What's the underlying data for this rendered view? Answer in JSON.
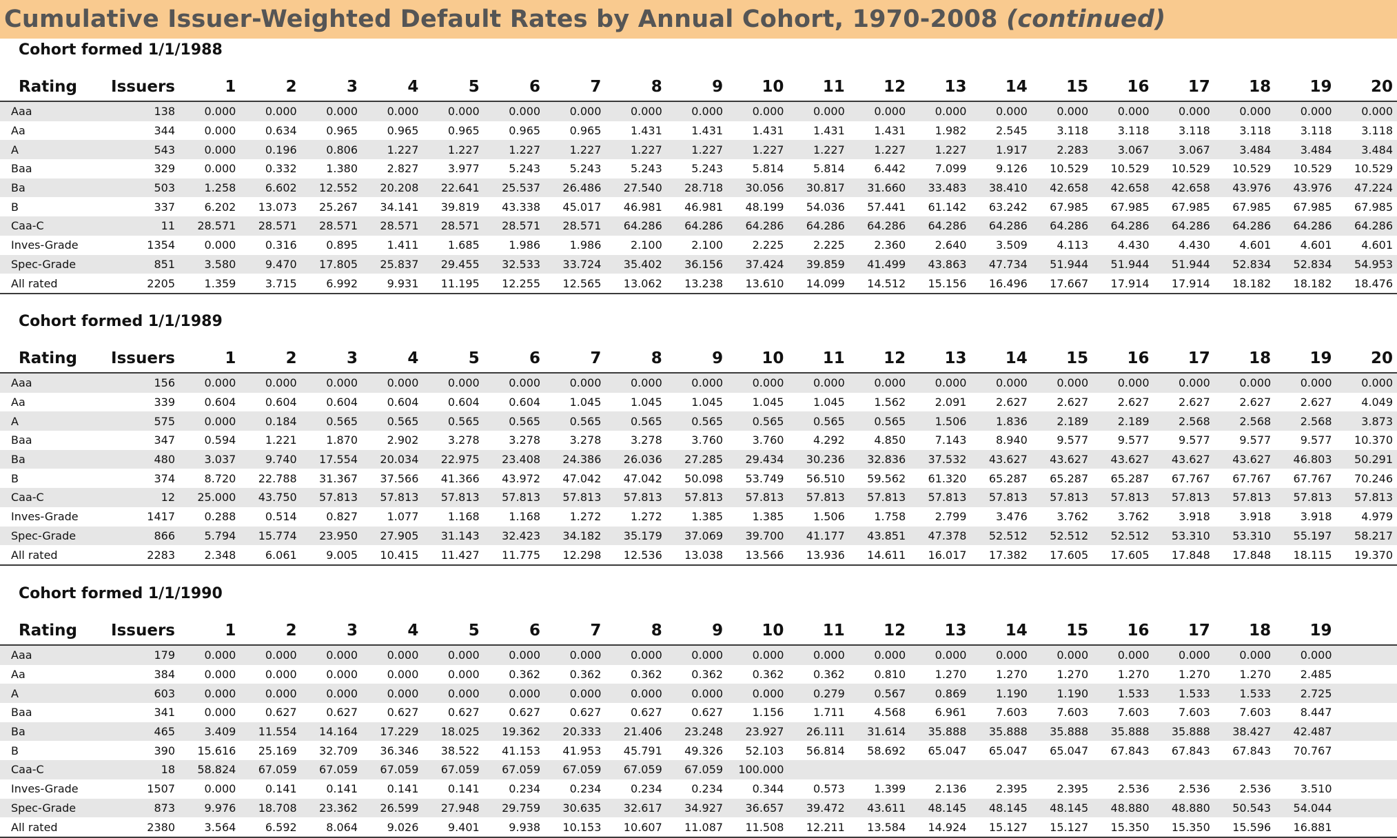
{
  "page": {
    "title": "Cumulative Issuer-Weighted Default Rates by Annual Cohort, 1970-2008",
    "title_suffix": "(continued)",
    "colors": {
      "title_band": "#f9ca8f",
      "title_text": "#555555",
      "row_stripe": "#e6e6e6"
    }
  },
  "cohorts": [
    {
      "title": "Cohort formed 1/1/1988",
      "headers": [
        "Rating",
        "Issuers",
        "1",
        "2",
        "3",
        "4",
        "5",
        "6",
        "7",
        "8",
        "9",
        "10",
        "11",
        "12",
        "13",
        "14",
        "15",
        "16",
        "17",
        "18",
        "19",
        "20"
      ],
      "rows": [
        [
          "Aaa",
          "138",
          "0.000",
          "0.000",
          "0.000",
          "0.000",
          "0.000",
          "0.000",
          "0.000",
          "0.000",
          "0.000",
          "0.000",
          "0.000",
          "0.000",
          "0.000",
          "0.000",
          "0.000",
          "0.000",
          "0.000",
          "0.000",
          "0.000",
          "0.000"
        ],
        [
          "Aa",
          "344",
          "0.000",
          "0.634",
          "0.965",
          "0.965",
          "0.965",
          "0.965",
          "0.965",
          "1.431",
          "1.431",
          "1.431",
          "1.431",
          "1.431",
          "1.982",
          "2.545",
          "3.118",
          "3.118",
          "3.118",
          "3.118",
          "3.118",
          "3.118"
        ],
        [
          "A",
          "543",
          "0.000",
          "0.196",
          "0.806",
          "1.227",
          "1.227",
          "1.227",
          "1.227",
          "1.227",
          "1.227",
          "1.227",
          "1.227",
          "1.227",
          "1.227",
          "1.917",
          "2.283",
          "3.067",
          "3.067",
          "3.484",
          "3.484",
          "3.484"
        ],
        [
          "Baa",
          "329",
          "0.000",
          "0.332",
          "1.380",
          "2.827",
          "3.977",
          "5.243",
          "5.243",
          "5.243",
          "5.243",
          "5.814",
          "5.814",
          "6.442",
          "7.099",
          "9.126",
          "10.529",
          "10.529",
          "10.529",
          "10.529",
          "10.529",
          "10.529"
        ],
        [
          "Ba",
          "503",
          "1.258",
          "6.602",
          "12.552",
          "20.208",
          "22.641",
          "25.537",
          "26.486",
          "27.540",
          "28.718",
          "30.056",
          "30.817",
          "31.660",
          "33.483",
          "38.410",
          "42.658",
          "42.658",
          "42.658",
          "43.976",
          "43.976",
          "47.224"
        ],
        [
          "B",
          "337",
          "6.202",
          "13.073",
          "25.267",
          "34.141",
          "39.819",
          "43.338",
          "45.017",
          "46.981",
          "46.981",
          "48.199",
          "54.036",
          "57.441",
          "61.142",
          "63.242",
          "67.985",
          "67.985",
          "67.985",
          "67.985",
          "67.985",
          "67.985"
        ],
        [
          "Caa-C",
          "11",
          "28.571",
          "28.571",
          "28.571",
          "28.571",
          "28.571",
          "28.571",
          "28.571",
          "64.286",
          "64.286",
          "64.286",
          "64.286",
          "64.286",
          "64.286",
          "64.286",
          "64.286",
          "64.286",
          "64.286",
          "64.286",
          "64.286",
          "64.286"
        ],
        [
          "Inves-Grade",
          "1354",
          "0.000",
          "0.316",
          "0.895",
          "1.411",
          "1.685",
          "1.986",
          "1.986",
          "2.100",
          "2.100",
          "2.225",
          "2.225",
          "2.360",
          "2.640",
          "3.509",
          "4.113",
          "4.430",
          "4.430",
          "4.601",
          "4.601",
          "4.601"
        ],
        [
          "Spec-Grade",
          "851",
          "3.580",
          "9.470",
          "17.805",
          "25.837",
          "29.455",
          "32.533",
          "33.724",
          "35.402",
          "36.156",
          "37.424",
          "39.859",
          "41.499",
          "43.863",
          "47.734",
          "51.944",
          "51.944",
          "51.944",
          "52.834",
          "52.834",
          "54.953"
        ],
        [
          "All rated",
          "2205",
          "1.359",
          "3.715",
          "6.992",
          "9.931",
          "11.195",
          "12.255",
          "12.565",
          "13.062",
          "13.238",
          "13.610",
          "14.099",
          "14.512",
          "15.156",
          "16.496",
          "17.667",
          "17.914",
          "17.914",
          "18.182",
          "18.182",
          "18.476"
        ]
      ]
    },
    {
      "title": "Cohort formed 1/1/1989",
      "headers": [
        "Rating",
        "Issuers",
        "1",
        "2",
        "3",
        "4",
        "5",
        "6",
        "7",
        "8",
        "9",
        "10",
        "11",
        "12",
        "13",
        "14",
        "15",
        "16",
        "17",
        "18",
        "19",
        "20"
      ],
      "rows": [
        [
          "Aaa",
          "156",
          "0.000",
          "0.000",
          "0.000",
          "0.000",
          "0.000",
          "0.000",
          "0.000",
          "0.000",
          "0.000",
          "0.000",
          "0.000",
          "0.000",
          "0.000",
          "0.000",
          "0.000",
          "0.000",
          "0.000",
          "0.000",
          "0.000",
          "0.000"
        ],
        [
          "Aa",
          "339",
          "0.604",
          "0.604",
          "0.604",
          "0.604",
          "0.604",
          "0.604",
          "1.045",
          "1.045",
          "1.045",
          "1.045",
          "1.045",
          "1.562",
          "2.091",
          "2.627",
          "2.627",
          "2.627",
          "2.627",
          "2.627",
          "2.627",
          "4.049"
        ],
        [
          "A",
          "575",
          "0.000",
          "0.184",
          "0.565",
          "0.565",
          "0.565",
          "0.565",
          "0.565",
          "0.565",
          "0.565",
          "0.565",
          "0.565",
          "0.565",
          "1.506",
          "1.836",
          "2.189",
          "2.189",
          "2.568",
          "2.568",
          "2.568",
          "3.873"
        ],
        [
          "Baa",
          "347",
          "0.594",
          "1.221",
          "1.870",
          "2.902",
          "3.278",
          "3.278",
          "3.278",
          "3.278",
          "3.760",
          "3.760",
          "4.292",
          "4.850",
          "7.143",
          "8.940",
          "9.577",
          "9.577",
          "9.577",
          "9.577",
          "9.577",
          "10.370"
        ],
        [
          "Ba",
          "480",
          "3.037",
          "9.740",
          "17.554",
          "20.034",
          "22.975",
          "23.408",
          "24.386",
          "26.036",
          "27.285",
          "29.434",
          "30.236",
          "32.836",
          "37.532",
          "43.627",
          "43.627",
          "43.627",
          "43.627",
          "43.627",
          "46.803",
          "50.291"
        ],
        [
          "B",
          "374",
          "8.720",
          "22.788",
          "31.367",
          "37.566",
          "41.366",
          "43.972",
          "47.042",
          "47.042",
          "50.098",
          "53.749",
          "56.510",
          "59.562",
          "61.320",
          "65.287",
          "65.287",
          "65.287",
          "67.767",
          "67.767",
          "67.767",
          "70.246"
        ],
        [
          "Caa-C",
          "12",
          "25.000",
          "43.750",
          "57.813",
          "57.813",
          "57.813",
          "57.813",
          "57.813",
          "57.813",
          "57.813",
          "57.813",
          "57.813",
          "57.813",
          "57.813",
          "57.813",
          "57.813",
          "57.813",
          "57.813",
          "57.813",
          "57.813",
          "57.813"
        ],
        [
          "Inves-Grade",
          "1417",
          "0.288",
          "0.514",
          "0.827",
          "1.077",
          "1.168",
          "1.168",
          "1.272",
          "1.272",
          "1.385",
          "1.385",
          "1.506",
          "1.758",
          "2.799",
          "3.476",
          "3.762",
          "3.762",
          "3.918",
          "3.918",
          "3.918",
          "4.979"
        ],
        [
          "Spec-Grade",
          "866",
          "5.794",
          "15.774",
          "23.950",
          "27.905",
          "31.143",
          "32.423",
          "34.182",
          "35.179",
          "37.069",
          "39.700",
          "41.177",
          "43.851",
          "47.378",
          "52.512",
          "52.512",
          "52.512",
          "53.310",
          "53.310",
          "55.197",
          "58.217"
        ],
        [
          "All rated",
          "2283",
          "2.348",
          "6.061",
          "9.005",
          "10.415",
          "11.427",
          "11.775",
          "12.298",
          "12.536",
          "13.038",
          "13.566",
          "13.936",
          "14.611",
          "16.017",
          "17.382",
          "17.605",
          "17.605",
          "17.848",
          "17.848",
          "18.115",
          "19.370"
        ]
      ]
    },
    {
      "title": "Cohort formed 1/1/1990",
      "headers": [
        "Rating",
        "Issuers",
        "1",
        "2",
        "3",
        "4",
        "5",
        "6",
        "7",
        "8",
        "9",
        "10",
        "11",
        "12",
        "13",
        "14",
        "15",
        "16",
        "17",
        "18",
        "19",
        ""
      ],
      "rows": [
        [
          "Aaa",
          "179",
          "0.000",
          "0.000",
          "0.000",
          "0.000",
          "0.000",
          "0.000",
          "0.000",
          "0.000",
          "0.000",
          "0.000",
          "0.000",
          "0.000",
          "0.000",
          "0.000",
          "0.000",
          "0.000",
          "0.000",
          "0.000",
          "0.000",
          ""
        ],
        [
          "Aa",
          "384",
          "0.000",
          "0.000",
          "0.000",
          "0.000",
          "0.000",
          "0.362",
          "0.362",
          "0.362",
          "0.362",
          "0.362",
          "0.362",
          "0.810",
          "1.270",
          "1.270",
          "1.270",
          "1.270",
          "1.270",
          "1.270",
          "2.485",
          ""
        ],
        [
          "A",
          "603",
          "0.000",
          "0.000",
          "0.000",
          "0.000",
          "0.000",
          "0.000",
          "0.000",
          "0.000",
          "0.000",
          "0.000",
          "0.279",
          "0.567",
          "0.869",
          "1.190",
          "1.190",
          "1.533",
          "1.533",
          "1.533",
          "2.725",
          ""
        ],
        [
          "Baa",
          "341",
          "0.000",
          "0.627",
          "0.627",
          "0.627",
          "0.627",
          "0.627",
          "0.627",
          "0.627",
          "0.627",
          "1.156",
          "1.711",
          "4.568",
          "6.961",
          "7.603",
          "7.603",
          "7.603",
          "7.603",
          "7.603",
          "8.447",
          ""
        ],
        [
          "Ba",
          "465",
          "3.409",
          "11.554",
          "14.164",
          "17.229",
          "18.025",
          "19.362",
          "20.333",
          "21.406",
          "23.248",
          "23.927",
          "26.111",
          "31.614",
          "35.888",
          "35.888",
          "35.888",
          "35.888",
          "35.888",
          "38.427",
          "42.487",
          ""
        ],
        [
          "B",
          "390",
          "15.616",
          "25.169",
          "32.709",
          "36.346",
          "38.522",
          "41.153",
          "41.953",
          "45.791",
          "49.326",
          "52.103",
          "56.814",
          "58.692",
          "65.047",
          "65.047",
          "65.047",
          "67.843",
          "67.843",
          "67.843",
          "70.767",
          ""
        ],
        [
          "Caa-C",
          "18",
          "58.824",
          "67.059",
          "67.059",
          "67.059",
          "67.059",
          "67.059",
          "67.059",
          "67.059",
          "67.059",
          "100.000",
          "",
          "",
          "",
          "",
          "",
          "",
          "",
          "",
          "",
          ""
        ],
        [
          "Inves-Grade",
          "1507",
          "0.000",
          "0.141",
          "0.141",
          "0.141",
          "0.141",
          "0.234",
          "0.234",
          "0.234",
          "0.234",
          "0.344",
          "0.573",
          "1.399",
          "2.136",
          "2.395",
          "2.395",
          "2.536",
          "2.536",
          "2.536",
          "3.510",
          ""
        ],
        [
          "Spec-Grade",
          "873",
          "9.976",
          "18.708",
          "23.362",
          "26.599",
          "27.948",
          "29.759",
          "30.635",
          "32.617",
          "34.927",
          "36.657",
          "39.472",
          "43.611",
          "48.145",
          "48.145",
          "48.145",
          "48.880",
          "48.880",
          "50.543",
          "54.044",
          ""
        ],
        [
          "All rated",
          "2380",
          "3.564",
          "6.592",
          "8.064",
          "9.026",
          "9.401",
          "9.938",
          "10.153",
          "10.607",
          "11.087",
          "11.508",
          "12.211",
          "13.584",
          "14.924",
          "15.127",
          "15.127",
          "15.350",
          "15.350",
          "15.596",
          "16.881",
          ""
        ]
      ]
    }
  ]
}
